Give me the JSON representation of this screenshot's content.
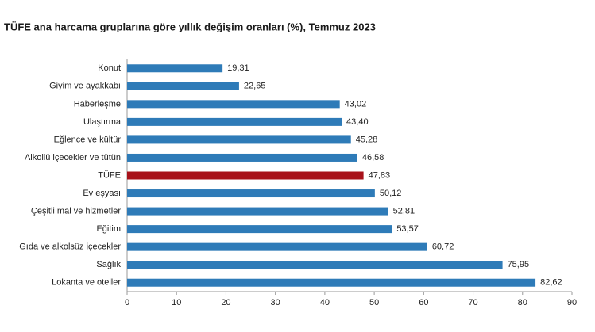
{
  "chart_data": {
    "type": "bar",
    "orientation": "horizontal",
    "title": "TÜFE ana harcama gruplarına göre yıllık değişim oranları (%), Temmuz 2023",
    "categories": [
      "Konut",
      "Giyim ve ayakkabı",
      "Haberleşme",
      "Ulaştırma",
      "Eğlence ve kültür",
      "Alkollü içecekler ve tütün",
      "TÜFE",
      "Ev eşyası",
      "Çeşitli mal ve hizmetler",
      "Eğitim",
      "Gıda ve alkolsüz içecekler",
      "Sağlık",
      "Lokanta ve oteller"
    ],
    "values": [
      19.31,
      22.65,
      43.02,
      43.4,
      45.28,
      46.58,
      47.83,
      50.12,
      52.81,
      53.57,
      60.72,
      75.95,
      82.62
    ],
    "value_labels": [
      "19,31",
      "22,65",
      "43,02",
      "43,40",
      "45,28",
      "46,58",
      "47,83",
      "50,12",
      "52,81",
      "53,57",
      "60,72",
      "75,95",
      "82,62"
    ],
    "colors": [
      "#2e7bb8",
      "#2e7bb8",
      "#2e7bb8",
      "#2e7bb8",
      "#2e7bb8",
      "#2e7bb8",
      "#a8121a",
      "#2e7bb8",
      "#2e7bb8",
      "#2e7bb8",
      "#2e7bb8",
      "#2e7bb8",
      "#2e7bb8"
    ],
    "xlim": [
      0,
      90
    ],
    "xticks": [
      0,
      10,
      20,
      30,
      40,
      50,
      60,
      70,
      80,
      90
    ],
    "grid": false
  }
}
